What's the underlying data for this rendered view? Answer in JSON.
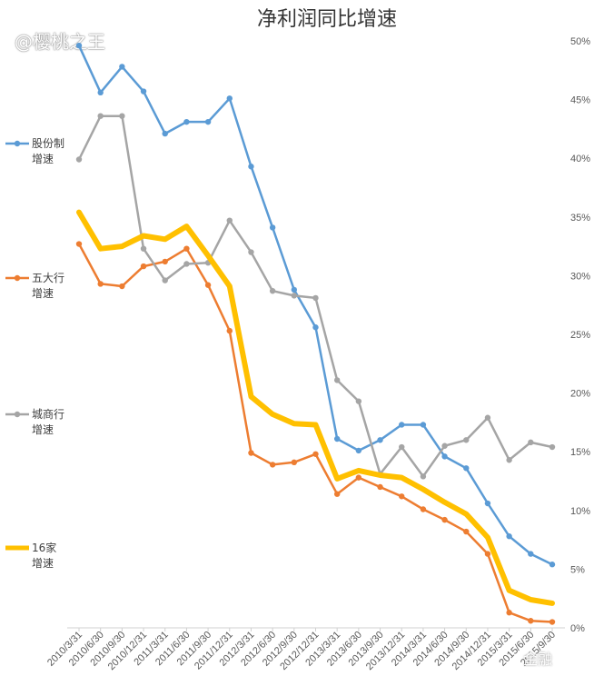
{
  "watermark": "@樱桃之王",
  "watermark_bottom": "金融",
  "chart_data": {
    "type": "line",
    "title": "净利润同比增速",
    "x": [
      "2010/3/31",
      "2010/6/30",
      "2010/9/30",
      "2010/12/31",
      "2011/3/31",
      "2011/6/30",
      "2011/9/30",
      "2011/12/31",
      "2012/3/31",
      "2012/6/30",
      "2012/9/30",
      "2012/12/31",
      "2013/3/31",
      "2013/6/30",
      "2013/9/30",
      "2013/12/31",
      "2014/3/31",
      "2014/6/30",
      "2014/9/30",
      "2014/12/31",
      "2015/3/31",
      "2015/6/30",
      "2015/9/30"
    ],
    "ylim": [
      0,
      50
    ],
    "yticks": [
      0,
      5,
      10,
      15,
      20,
      25,
      30,
      35,
      40,
      45,
      50
    ],
    "ytick_labels": [
      "0%",
      "5%",
      "10%",
      "15%",
      "20%",
      "25%",
      "30%",
      "35%",
      "40%",
      "45%",
      "50%"
    ],
    "grid": false,
    "legend_position": "left",
    "series": [
      {
        "name": "股份制增速",
        "legend_lines": [
          "股份制",
          "增速"
        ],
        "color": "#5b9bd5",
        "values": [
          49.6,
          45.6,
          47.8,
          45.7,
          42.1,
          43.1,
          43.1,
          45.1,
          39.3,
          34.1,
          28.8,
          25.6,
          16.1,
          15.1,
          16.0,
          17.3,
          17.3,
          14.6,
          13.6,
          10.6,
          7.8,
          6.3,
          5.4
        ]
      },
      {
        "name": "五大行增速",
        "legend_lines": [
          "五大行",
          "增速"
        ],
        "color": "#ed7d31",
        "values": [
          32.7,
          29.3,
          29.1,
          30.8,
          31.2,
          32.3,
          29.2,
          25.3,
          14.9,
          13.9,
          14.1,
          14.8,
          11.4,
          12.8,
          12.0,
          11.2,
          10.1,
          9.2,
          8.2,
          6.3,
          1.3,
          0.6,
          0.5
        ]
      },
      {
        "name": "城商行增速",
        "legend_lines": [
          "城商行",
          "增速"
        ],
        "color": "#a5a5a5",
        "values": [
          39.9,
          43.6,
          43.6,
          32.3,
          29.6,
          31.0,
          31.1,
          34.7,
          32.0,
          28.7,
          28.3,
          28.1,
          21.1,
          19.3,
          13.1,
          15.4,
          12.9,
          15.5,
          16.0,
          17.9,
          14.3,
          15.8,
          15.4
        ]
      },
      {
        "name": "16家增速",
        "legend_lines": [
          "16家",
          "增速"
        ],
        "color": "#ffc000",
        "values": [
          35.4,
          32.3,
          32.5,
          33.4,
          33.1,
          34.2,
          31.7,
          29.1,
          19.7,
          18.2,
          17.4,
          17.3,
          12.7,
          13.4,
          13.0,
          12.8,
          11.8,
          10.7,
          9.7,
          7.7,
          3.2,
          2.4,
          2.1
        ]
      }
    ]
  }
}
